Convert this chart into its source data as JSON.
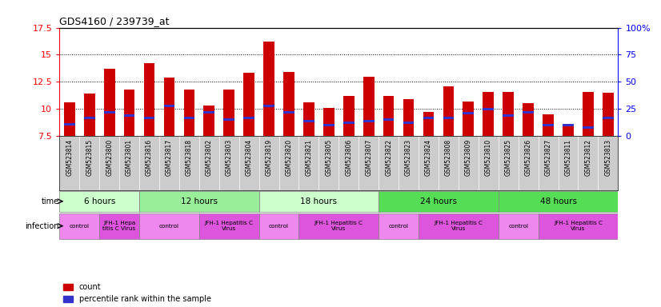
{
  "title": "GDS4160 / 239739_at",
  "samples": [
    "GSM523814",
    "GSM523815",
    "GSM523800",
    "GSM523801",
    "GSM523816",
    "GSM523817",
    "GSM523818",
    "GSM523802",
    "GSM523803",
    "GSM523804",
    "GSM523819",
    "GSM523820",
    "GSM523821",
    "GSM523805",
    "GSM523806",
    "GSM523807",
    "GSM523822",
    "GSM523823",
    "GSM523824",
    "GSM523808",
    "GSM523809",
    "GSM523810",
    "GSM523825",
    "GSM523826",
    "GSM523827",
    "GSM523811",
    "GSM523812",
    "GSM523813"
  ],
  "counts": [
    10.6,
    11.4,
    13.7,
    11.8,
    14.2,
    12.9,
    11.8,
    10.3,
    11.8,
    13.3,
    16.2,
    13.4,
    10.6,
    10.1,
    11.2,
    13.0,
    11.2,
    10.9,
    9.7,
    12.1,
    10.7,
    11.6,
    11.6,
    10.5,
    9.5,
    8.5,
    11.6,
    11.5
  ],
  "percentile_ranks": [
    8.6,
    9.2,
    9.7,
    9.4,
    9.2,
    10.3,
    9.2,
    9.7,
    9.0,
    9.2,
    10.3,
    9.7,
    8.9,
    8.5,
    8.7,
    8.9,
    9.0,
    8.7,
    9.2,
    9.2,
    9.6,
    10.0,
    9.4,
    9.7,
    8.5,
    8.5,
    8.3,
    9.2
  ],
  "ymin": 7.5,
  "ymax": 17.5,
  "yticks": [
    7.5,
    10.0,
    12.5,
    15.0,
    17.5
  ],
  "ytick_labels": [
    "7.5",
    "10",
    "12.5",
    "15",
    "17.5"
  ],
  "right_yticks": [
    0,
    25,
    50,
    75,
    100
  ],
  "right_ytick_labels": [
    "0",
    "25",
    "50",
    "75",
    "100%"
  ],
  "bar_color": "#cc0000",
  "blue_color": "#3333cc",
  "time_groups": [
    {
      "label": "6 hours",
      "start": 0,
      "end": 4,
      "color": "#ccffcc"
    },
    {
      "label": "12 hours",
      "start": 4,
      "end": 10,
      "color": "#99ee99"
    },
    {
      "label": "18 hours",
      "start": 10,
      "end": 16,
      "color": "#ccffcc"
    },
    {
      "label": "24 hours",
      "start": 16,
      "end": 22,
      "color": "#55dd55"
    },
    {
      "label": "48 hours",
      "start": 22,
      "end": 28,
      "color": "#55dd55"
    }
  ],
  "infection_groups": [
    {
      "label": "control",
      "start": 0,
      "end": 2,
      "color": "#ee88ee"
    },
    {
      "label": "JFH-1 Hepa\ntitis C Virus",
      "start": 2,
      "end": 4,
      "color": "#dd55dd"
    },
    {
      "label": "control",
      "start": 4,
      "end": 7,
      "color": "#ee88ee"
    },
    {
      "label": "JFH-1 Hepatitis C\nVirus",
      "start": 7,
      "end": 10,
      "color": "#dd55dd"
    },
    {
      "label": "control",
      "start": 10,
      "end": 12,
      "color": "#ee88ee"
    },
    {
      "label": "JFH-1 Hepatitis C\nVirus",
      "start": 12,
      "end": 16,
      "color": "#dd55dd"
    },
    {
      "label": "control",
      "start": 16,
      "end": 18,
      "color": "#ee88ee"
    },
    {
      "label": "JFH-1 Hepatitis C\nVirus",
      "start": 18,
      "end": 22,
      "color": "#dd55dd"
    },
    {
      "label": "control",
      "start": 22,
      "end": 24,
      "color": "#ee88ee"
    },
    {
      "label": "JFH-1 Hepatitis C\nVirus",
      "start": 24,
      "end": 28,
      "color": "#dd55dd"
    }
  ],
  "background_color": "#ffffff",
  "label_bg_color": "#cccccc"
}
